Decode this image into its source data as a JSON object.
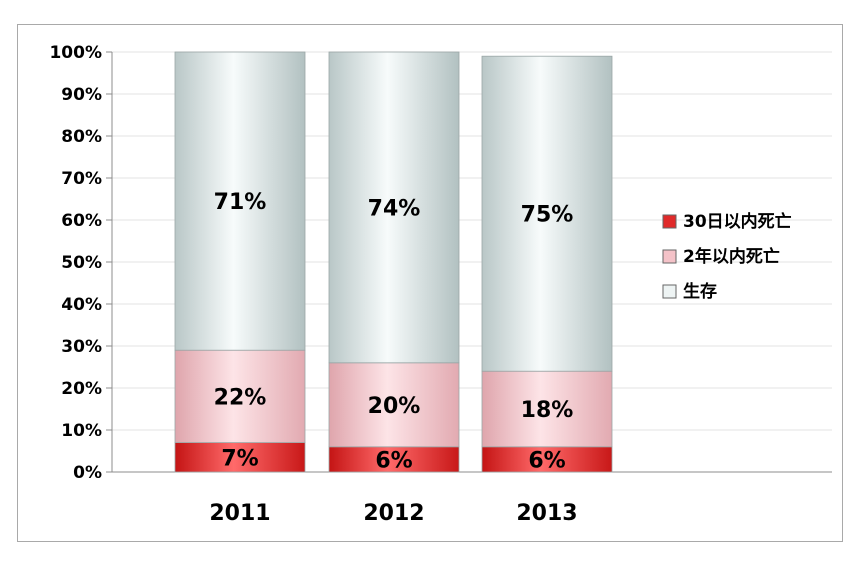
{
  "chart_data": {
    "type": "bar",
    "stacked": true,
    "percent": true,
    "categories": [
      "2011",
      "2012",
      "2013"
    ],
    "series": [
      {
        "name": "30日以内死亡",
        "values": [
          7,
          6,
          6
        ],
        "labels": [
          "7%",
          "6%",
          "6%"
        ],
        "color": "#e02a2a"
      },
      {
        "name": "2年以内死亡",
        "values": [
          22,
          20,
          18
        ],
        "labels": [
          "22%",
          "20%",
          "18%"
        ],
        "color": "#f2c2c8"
      },
      {
        "name": "生存",
        "values": [
          71,
          74,
          75
        ],
        "labels": [
          "71%",
          "74%",
          "75%"
        ],
        "color": "#e4ecec"
      }
    ],
    "ylim": [
      0,
      100
    ],
    "yticks": [
      "0%",
      "10%",
      "20%",
      "30%",
      "40%",
      "50%",
      "60%",
      "70%",
      "80%",
      "90%",
      "100%"
    ],
    "grid": true,
    "legend_position": "right"
  }
}
